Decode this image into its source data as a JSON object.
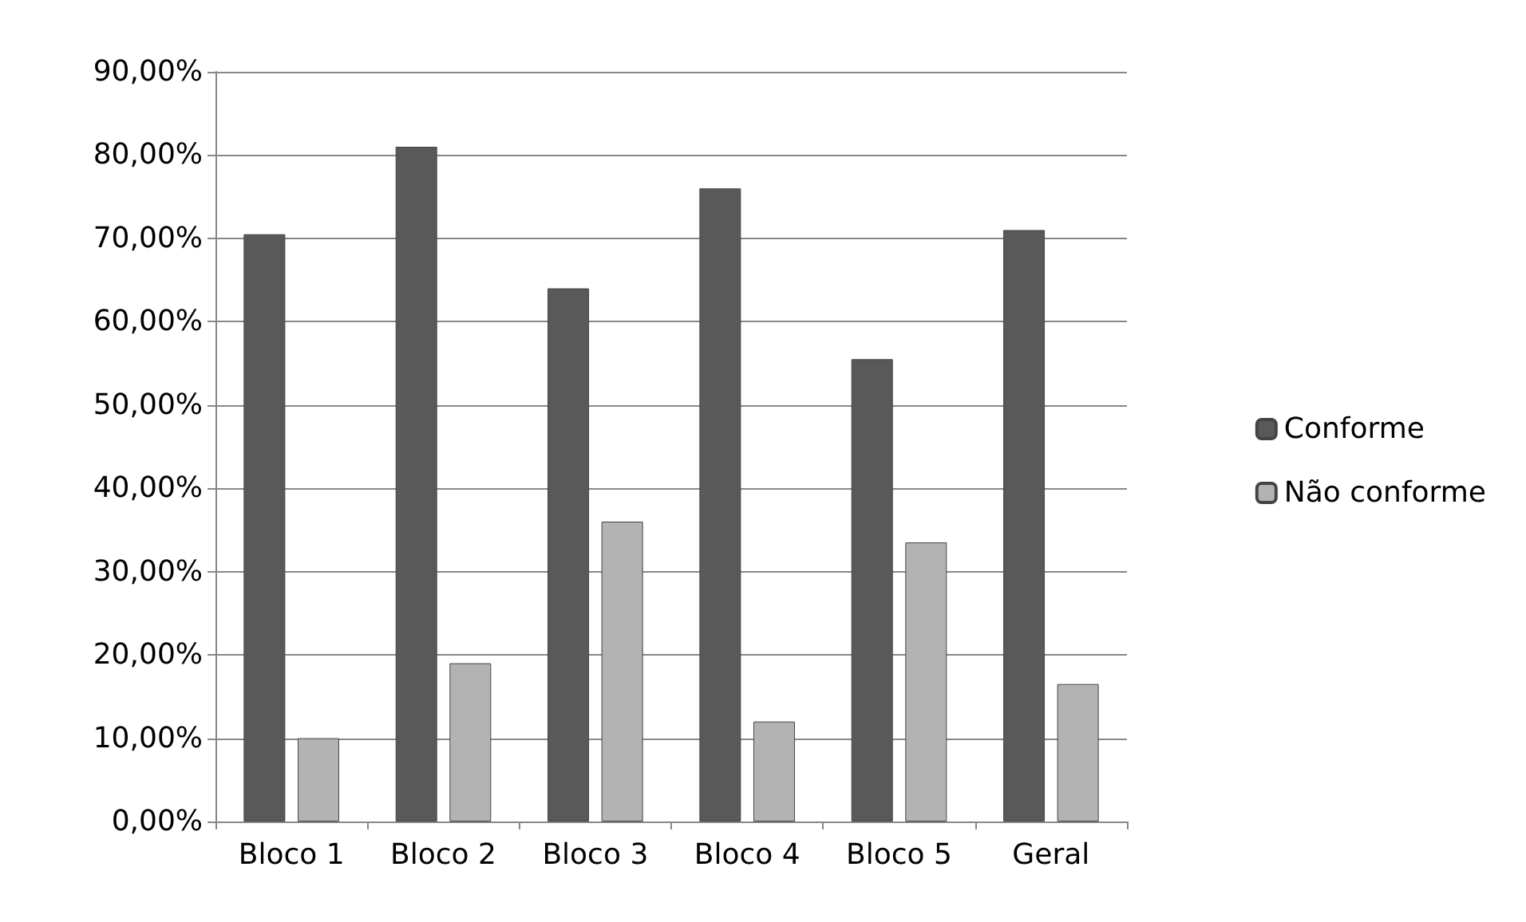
{
  "chart_data": {
    "type": "bar",
    "categories": [
      "Bloco 1",
      "Bloco 2",
      "Bloco 3",
      "Bloco 4",
      "Bloco 5",
      "Geral"
    ],
    "series": [
      {
        "name": "Conforme",
        "color": "#595959",
        "values": [
          70.5,
          81,
          64,
          76,
          55.5,
          71
        ]
      },
      {
        "name": "Não conforme",
        "color": "#b3b3b3",
        "values": [
          10,
          19,
          36,
          12,
          33.5,
          16.5
        ]
      }
    ],
    "ylim": [
      0,
      90
    ],
    "yticks": [
      {
        "value": 0,
        "label": "0,00%"
      },
      {
        "value": 10,
        "label": "10,00%"
      },
      {
        "value": 20,
        "label": "20,00%"
      },
      {
        "value": 30,
        "label": "30,00%"
      },
      {
        "value": 40,
        "label": "40,00%"
      },
      {
        "value": 50,
        "label": "50,00%"
      },
      {
        "value": 60,
        "label": "60,00%"
      },
      {
        "value": 70,
        "label": "70,00%"
      },
      {
        "value": 80,
        "label": "80,00%"
      },
      {
        "value": 90,
        "label": "90,00%"
      }
    ],
    "grid": "y",
    "legend": "right"
  }
}
